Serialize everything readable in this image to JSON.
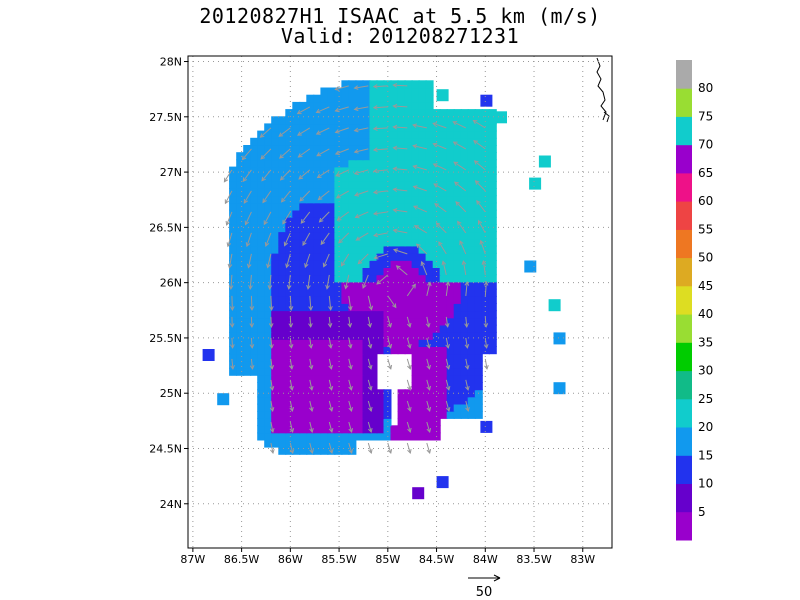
{
  "title": "20120827H1 ISAAC at 5.5 km (m/s)",
  "subtitle": "Valid: 201208271231",
  "axes": {
    "lat_ticks": [
      "28N",
      "27.5N",
      "27N",
      "26.5N",
      "26N",
      "25.5N",
      "25N",
      "24.5N",
      "24N"
    ],
    "lon_ticks": [
      "87W",
      "86.5W",
      "86W",
      "85.5W",
      "85W",
      "84.5W",
      "84W",
      "83.5W",
      "83W"
    ],
    "lat_range": [
      23.6,
      28.05
    ],
    "lon_range": [
      -87.05,
      -82.7
    ]
  },
  "colorbar": {
    "labels": [
      "5",
      "10",
      "15",
      "20",
      "25",
      "30",
      "35",
      "40",
      "45",
      "50",
      "55",
      "60",
      "65",
      "70",
      "75",
      "80"
    ],
    "colors": [
      "#9900cc",
      "#6600cc",
      "#2233ee",
      "#1199ee",
      "#11cccc",
      "#11bb88",
      "#00cc00",
      "#99dd33",
      "#dddd22",
      "#ddaa22",
      "#ee7722",
      "#ee4444",
      "#ee1188",
      "#9900cc",
      "#11cccc",
      "#99dd33",
      "#aaaaaa"
    ]
  },
  "reference_vector": {
    "label": "50"
  },
  "colors": {
    "grid": "#999999",
    "arrow": "#999999",
    "c5_10": "#9900cc",
    "c10_15": "#6600cc",
    "c15_20": "#2233ee",
    "c20_25": "#1199ee",
    "c25_30": "#11cccc"
  }
}
